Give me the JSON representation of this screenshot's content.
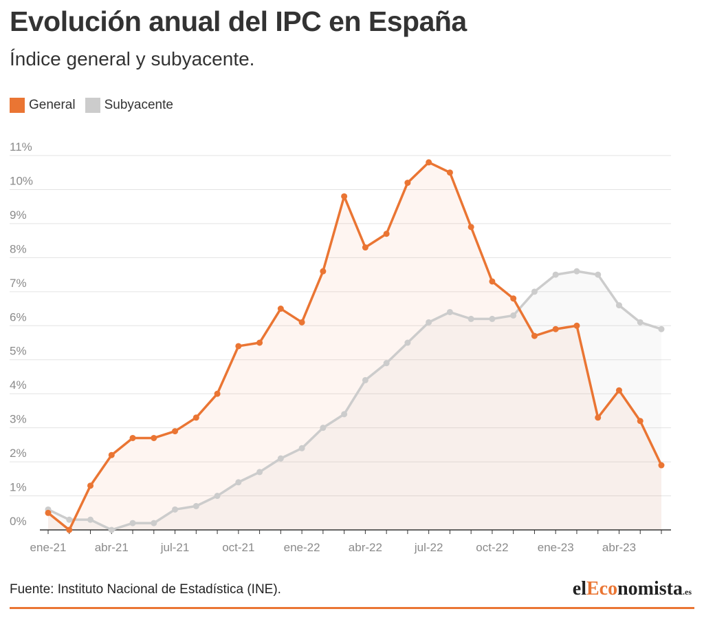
{
  "header": {
    "title": "Evolución anual del IPC en España",
    "subtitle": "Índice general y subyacente."
  },
  "legend": [
    {
      "label": "General",
      "color": "#ea7533"
    },
    {
      "label": "Subyacente",
      "color": "#cccccc"
    }
  ],
  "footer": {
    "source": "Fuente: Instituto Nacional de Estadística (INE).",
    "logo": {
      "part1": "el",
      "part2": "Eco",
      "part3": "nomista",
      "part4": ".es"
    }
  },
  "chart_data": {
    "type": "area",
    "title": "Evolución anual del IPC en España",
    "subtitle": "Índice general y subyacente.",
    "x": [
      "ene-21",
      "feb-21",
      "mar-21",
      "abr-21",
      "may-21",
      "jun-21",
      "jul-21",
      "ago-21",
      "sep-21",
      "oct-21",
      "nov-21",
      "dic-21",
      "ene-22",
      "feb-22",
      "mar-22",
      "abr-22",
      "may-22",
      "jun-22",
      "jul-22",
      "ago-22",
      "sep-22",
      "oct-22",
      "nov-22",
      "dic-22",
      "ene-23",
      "feb-23",
      "mar-23",
      "abr-23",
      "may-23",
      "jun-23"
    ],
    "x_tick_labels": [
      "ene-21",
      "abr-21",
      "jul-21",
      "oct-21",
      "ene-22",
      "abr-22",
      "jul-22",
      "oct-22",
      "ene-23",
      "abr-23"
    ],
    "y_tick_labels": [
      "0%",
      "1%",
      "2%",
      "3%",
      "4%",
      "5%",
      "6%",
      "7%",
      "8%",
      "9%",
      "10%",
      "11%"
    ],
    "ylim": [
      0,
      11
    ],
    "series": [
      {
        "name": "General",
        "color": "#ea7533",
        "values": [
          0.5,
          0.0,
          1.3,
          2.2,
          2.7,
          2.7,
          2.9,
          3.3,
          4.0,
          5.4,
          5.5,
          6.5,
          6.1,
          7.6,
          9.8,
          8.3,
          8.7,
          10.2,
          10.8,
          10.5,
          8.9,
          7.3,
          6.8,
          5.7,
          5.9,
          6.0,
          3.3,
          4.1,
          3.2,
          1.9
        ]
      },
      {
        "name": "Subyacente",
        "color": "#cccccc",
        "values": [
          0.6,
          0.3,
          0.3,
          0.0,
          0.2,
          0.2,
          0.6,
          0.7,
          1.0,
          1.4,
          1.7,
          2.1,
          2.4,
          3.0,
          3.4,
          4.4,
          4.9,
          5.5,
          6.1,
          6.4,
          6.2,
          6.2,
          6.3,
          7.0,
          7.5,
          7.6,
          7.5,
          6.6,
          6.1,
          5.9
        ]
      }
    ],
    "grid": true
  }
}
